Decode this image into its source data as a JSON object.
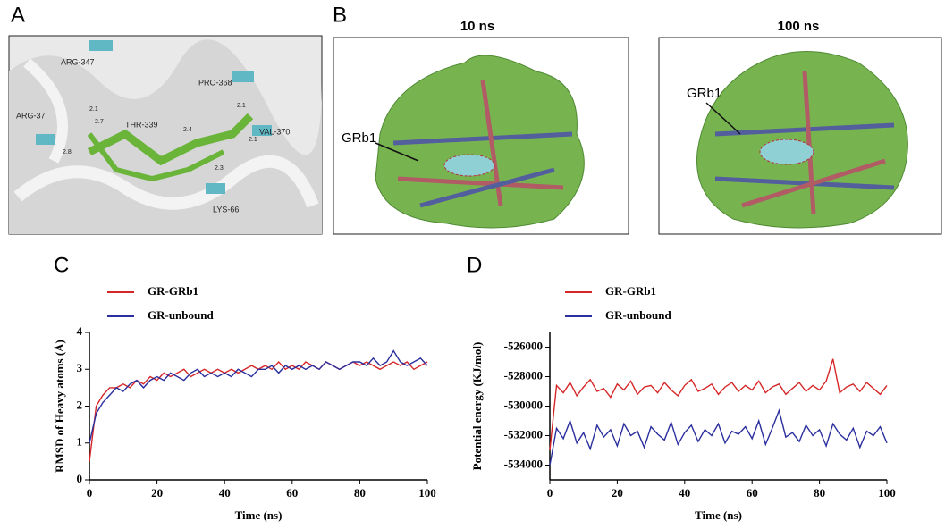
{
  "panel_labels": [
    "A",
    "B",
    "C",
    "D"
  ],
  "panel_a": {
    "residues": [
      "ARG-347",
      "PRO-368",
      "ARG-37",
      "THR-339",
      "VAL-370",
      "LYS-66"
    ],
    "distances": [
      "2.1",
      "2.7",
      "2.8",
      "2.4",
      "2.1",
      "2.1",
      "2.3"
    ]
  },
  "panel_b": {
    "snapshots": [
      {
        "title": "10 ns",
        "ligand": "GRb1"
      },
      {
        "title": "100 ns",
        "ligand": "GRb1"
      }
    ]
  },
  "chart_data": [
    {
      "type": "line",
      "xlabel": "Time (ns)",
      "ylabel": "RMSD of Heavy atoms (Å)",
      "x": [
        0,
        2,
        4,
        6,
        8,
        10,
        12,
        14,
        16,
        18,
        20,
        22,
        24,
        26,
        28,
        30,
        32,
        34,
        36,
        38,
        40,
        42,
        44,
        46,
        48,
        50,
        52,
        54,
        56,
        58,
        60,
        62,
        64,
        66,
        68,
        70,
        72,
        74,
        76,
        78,
        80,
        82,
        84,
        86,
        88,
        90,
        92,
        94,
        96,
        98,
        100
      ],
      "xlim": [
        0,
        100
      ],
      "xticks": [
        0,
        20,
        40,
        60,
        80,
        100
      ],
      "ylim": [
        0,
        4
      ],
      "yticks": [
        0,
        1,
        2,
        3,
        4
      ],
      "series": [
        {
          "name": "GR-GRb1",
          "color": "#d62728",
          "values": [
            0.5,
            2.0,
            2.3,
            2.5,
            2.5,
            2.6,
            2.5,
            2.7,
            2.6,
            2.8,
            2.7,
            2.9,
            2.8,
            2.9,
            3.0,
            2.8,
            2.9,
            3.0,
            2.9,
            3.0,
            2.9,
            3.0,
            2.9,
            3.0,
            3.1,
            3.0,
            3.1,
            3.0,
            3.2,
            3.0,
            3.1,
            3.0,
            3.2,
            3.1,
            3.0,
            3.2,
            3.1,
            3.0,
            3.1,
            3.2,
            3.1,
            3.2,
            3.1,
            3.0,
            3.1,
            3.2,
            3.1,
            3.2,
            3.0,
            3.1,
            3.2
          ]
        },
        {
          "name": "GR-unbound",
          "color": "#2b2f9e",
          "values": [
            1.0,
            1.8,
            2.1,
            2.3,
            2.5,
            2.4,
            2.6,
            2.7,
            2.5,
            2.7,
            2.8,
            2.7,
            2.9,
            2.8,
            2.7,
            2.9,
            3.0,
            2.8,
            2.9,
            2.8,
            2.9,
            2.8,
            3.0,
            2.9,
            2.8,
            3.0,
            3.0,
            3.1,
            2.9,
            3.1,
            3.0,
            3.1,
            3.0,
            3.1,
            3.0,
            3.2,
            3.1,
            3.0,
            3.1,
            3.2,
            3.2,
            3.1,
            3.3,
            3.1,
            3.2,
            3.5,
            3.2,
            3.1,
            3.2,
            3.3,
            3.1
          ]
        }
      ]
    },
    {
      "type": "line",
      "xlabel": "Time (ns)",
      "ylabel": "Potential energy (KJ/mol)",
      "x": [
        0,
        2,
        4,
        6,
        8,
        10,
        12,
        14,
        16,
        18,
        20,
        22,
        24,
        26,
        28,
        30,
        32,
        34,
        36,
        38,
        40,
        42,
        44,
        46,
        48,
        50,
        52,
        54,
        56,
        58,
        60,
        62,
        64,
        66,
        68,
        70,
        72,
        74,
        76,
        78,
        80,
        82,
        84,
        86,
        88,
        90,
        92,
        94,
        96,
        98,
        100
      ],
      "xlim": [
        0,
        100
      ],
      "xticks": [
        0,
        20,
        40,
        60,
        80,
        100
      ],
      "ylim": [
        -535000,
        -525000
      ],
      "yticks": [
        -534000,
        -532000,
        -530000,
        -528000,
        -526000
      ],
      "series": [
        {
          "name": "GR-GRb1",
          "color": "#d62728",
          "values": [
            -533000,
            -528600,
            -529100,
            -528400,
            -529300,
            -528700,
            -528200,
            -529000,
            -528800,
            -529400,
            -528500,
            -528900,
            -528300,
            -529200,
            -528700,
            -528600,
            -529100,
            -528400,
            -528900,
            -529300,
            -528600,
            -528200,
            -529000,
            -528800,
            -528500,
            -529200,
            -528700,
            -528400,
            -529000,
            -528600,
            -528900,
            -528300,
            -529100,
            -528700,
            -528500,
            -529200,
            -528800,
            -528400,
            -529000,
            -528600,
            -528900,
            -528300,
            -526800,
            -529100,
            -528700,
            -528500,
            -529000,
            -528400,
            -528800,
            -529200,
            -528600
          ]
        },
        {
          "name": "GR-unbound",
          "color": "#2b2f9e",
          "values": [
            -534000,
            -531500,
            -532200,
            -531000,
            -532500,
            -531800,
            -532900,
            -531300,
            -532100,
            -531600,
            -532700,
            -531200,
            -532000,
            -531700,
            -532800,
            -531400,
            -531900,
            -532300,
            -531100,
            -532600,
            -531800,
            -531300,
            -532400,
            -531600,
            -532000,
            -531200,
            -532500,
            -531700,
            -531900,
            -531400,
            -532200,
            -531000,
            -532600,
            -531500,
            -530300,
            -532100,
            -531800,
            -532400,
            -531300,
            -532000,
            -531600,
            -532700,
            -531200,
            -531900,
            -532300,
            -531500,
            -532800,
            -531700,
            -532000,
            -531400,
            -532500
          ]
        }
      ]
    }
  ]
}
